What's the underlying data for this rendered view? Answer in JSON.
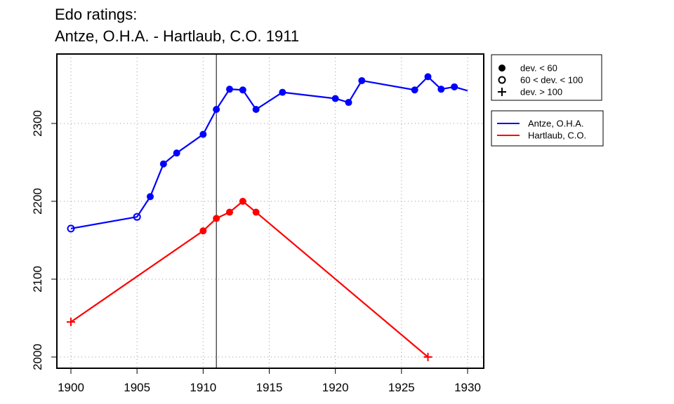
{
  "title_line1": "Edo ratings:",
  "title_line2": "Antze, O.H.A. - Hartlaub, C.O. 1911",
  "chart_data": {
    "type": "line",
    "xlim": [
      1899,
      1931
    ],
    "ylim": [
      1990,
      2318
    ],
    "x_ticks": [
      1900,
      1905,
      1910,
      1915,
      1920,
      1925,
      1930
    ],
    "y_ticks": [
      2000,
      2100,
      2200,
      2300
    ],
    "grid": true,
    "vertical_marker_x": 1911,
    "legend_placement": "right",
    "marker_legend": [
      {
        "symbol": "filled",
        "label": "dev. < 60"
      },
      {
        "symbol": "open",
        "label": "60 < dev. < 100"
      },
      {
        "symbol": "plus",
        "label": "dev. > 100"
      }
    ],
    "series": [
      {
        "name": "Antze, O.H.A.",
        "color": "#0000ff",
        "points": [
          {
            "x": 1900,
            "y": 2165,
            "marker": "open"
          },
          {
            "x": 1905,
            "y": 2180,
            "marker": "open"
          },
          {
            "x": 1906,
            "y": 2206,
            "marker": "filled"
          },
          {
            "x": 1907,
            "y": 2248,
            "marker": "filled"
          },
          {
            "x": 1908,
            "y": 2262,
            "marker": "filled"
          },
          {
            "x": 1910,
            "y": 2286,
            "marker": "filled"
          },
          {
            "x": 1911,
            "y": 2318,
            "marker": "filled"
          },
          {
            "x": 1912,
            "y": 2344,
            "marker": "filled"
          },
          {
            "x": 1913,
            "y": 2343,
            "marker": "filled"
          },
          {
            "x": 1914,
            "y": 2318,
            "marker": "filled"
          },
          {
            "x": 1916,
            "y": 2340,
            "marker": "filled"
          },
          {
            "x": 1920,
            "y": 2332,
            "marker": "filled"
          },
          {
            "x": 1921,
            "y": 2327,
            "marker": "filled"
          },
          {
            "x": 1922,
            "y": 2355,
            "marker": "filled"
          },
          {
            "x": 1926,
            "y": 2343,
            "marker": "filled"
          },
          {
            "x": 1927,
            "y": 2360,
            "marker": "filled"
          },
          {
            "x": 1928,
            "y": 2344,
            "marker": "filled"
          },
          {
            "x": 1929,
            "y": 2347,
            "marker": "filled"
          },
          {
            "x": 1930,
            "y": 2342,
            "marker": "none"
          }
        ]
      },
      {
        "name": "Hartlaub, C.O.",
        "color": "#ff0000",
        "points": [
          {
            "x": 1900,
            "y": 2045,
            "marker": "plus"
          },
          {
            "x": 1910,
            "y": 2162,
            "marker": "filled"
          },
          {
            "x": 1911,
            "y": 2178,
            "marker": "filled"
          },
          {
            "x": 1912,
            "y": 2186,
            "marker": "filled"
          },
          {
            "x": 1913,
            "y": 2200,
            "marker": "filled"
          },
          {
            "x": 1914,
            "y": 2186,
            "marker": "filled"
          },
          {
            "x": 1927,
            "y": 2000,
            "marker": "plus"
          }
        ]
      }
    ]
  }
}
